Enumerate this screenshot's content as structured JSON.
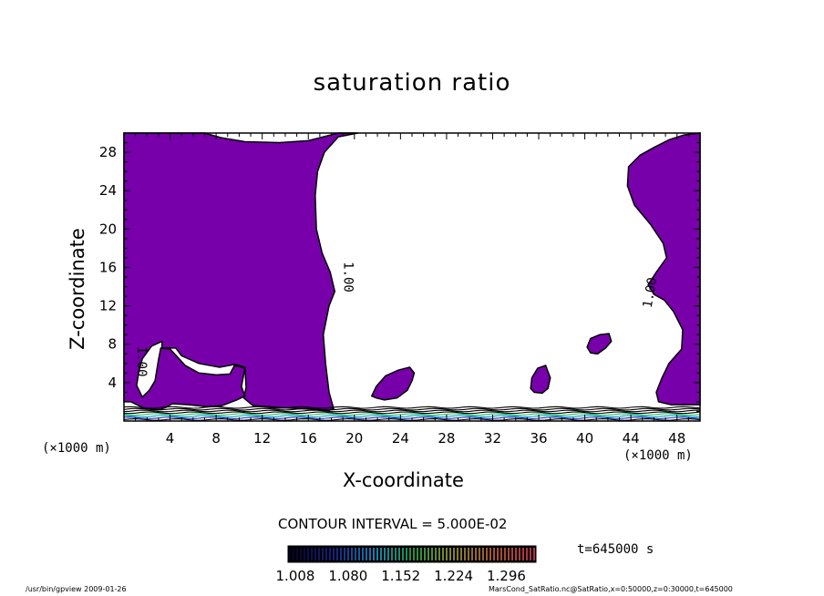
{
  "chart_data": {
    "type": "contour",
    "title": "saturation ratio",
    "xlabel": "X-coordinate",
    "ylabel": "Z-coordinate",
    "x_unit_note": "(×1000 m)",
    "xlim": [
      0,
      50
    ],
    "ylim": [
      0,
      30
    ],
    "x_ticks": [
      4,
      8,
      12,
      16,
      20,
      24,
      28,
      32,
      36,
      40,
      44,
      48
    ],
    "y_ticks": [
      4,
      8,
      12,
      16,
      20,
      24,
      28
    ],
    "contour_labels": [
      "1.00",
      "1.00",
      "1.00"
    ],
    "contour_interval_text": "CONTOUR INTERVAL = 5.000E-02",
    "colorbar_ticks": [
      "1.008",
      "1.080",
      "1.152",
      "1.224",
      "1.296"
    ],
    "time_text": "t=645000 s",
    "region_color": "#7700aa",
    "regions": [
      {
        "name": "left-block",
        "outline": [
          [
            0,
            30
          ],
          [
            0,
            2
          ],
          [
            0.6,
            2
          ],
          [
            1.8,
            1.3
          ],
          [
            3.1,
            1.2
          ],
          [
            3.6,
            1.4
          ],
          [
            4.2,
            1.8
          ],
          [
            5.6,
            1.7
          ],
          [
            7.2,
            1.5
          ],
          [
            8.5,
            1.6
          ],
          [
            9.8,
            2.2
          ],
          [
            10.5,
            2.6
          ],
          [
            10.2,
            3.6
          ],
          [
            10.5,
            5.5
          ],
          [
            9.6,
            5.8
          ],
          [
            9.2,
            4.9
          ],
          [
            8.0,
            4.8
          ],
          [
            6.5,
            5.0
          ],
          [
            5.3,
            5.8
          ],
          [
            4.7,
            6.6
          ],
          [
            4.0,
            7.5
          ],
          [
            3.2,
            7.6
          ],
          [
            3.0,
            6.4
          ],
          [
            2.7,
            4.2
          ],
          [
            2.2,
            3.2
          ],
          [
            1.6,
            2.5
          ],
          [
            1.1,
            3.7
          ],
          [
            1.3,
            5.2
          ],
          [
            1.6,
            6.5
          ],
          [
            2.4,
            7.8
          ],
          [
            3.3,
            8.3
          ],
          [
            3.3,
            7.6
          ],
          [
            4.5,
            7.6
          ],
          [
            5.0,
            6.8
          ],
          [
            6.5,
            6.0
          ],
          [
            8.3,
            5.6
          ],
          [
            9.6,
            5.9
          ],
          [
            10.5,
            5.6
          ],
          [
            10.6,
            3.5
          ],
          [
            10.4,
            2.4
          ],
          [
            11.2,
            1.6
          ],
          [
            13.5,
            1.4
          ],
          [
            15.0,
            1.3
          ],
          [
            16.8,
            1.2
          ],
          [
            17.8,
            1.1
          ],
          [
            18.2,
            1.3
          ],
          [
            17.8,
            3.0
          ],
          [
            17.5,
            6.0
          ],
          [
            17.3,
            9.0
          ],
          [
            17.8,
            12.0
          ],
          [
            18.3,
            13.5
          ],
          [
            17.9,
            15.5
          ],
          [
            17.2,
            17.5
          ],
          [
            16.7,
            20.0
          ],
          [
            16.6,
            23.5
          ],
          [
            16.8,
            26.0
          ],
          [
            17.4,
            28.0
          ],
          [
            18.6,
            29.6
          ],
          [
            20.3,
            30
          ],
          [
            18.6,
            30
          ],
          [
            16.0,
            29.2
          ],
          [
            13.5,
            29.0
          ],
          [
            10.5,
            29.1
          ],
          [
            8.5,
            29.5
          ],
          [
            7.0,
            30
          ]
        ]
      },
      {
        "name": "right-block",
        "outline": [
          [
            50,
            30
          ],
          [
            48.6,
            29.8
          ],
          [
            47.3,
            29.3
          ],
          [
            46.0,
            28.5
          ],
          [
            44.8,
            27.7
          ],
          [
            43.8,
            26.5
          ],
          [
            43.7,
            24.5
          ],
          [
            44.3,
            22.5
          ],
          [
            45.7,
            20.5
          ],
          [
            46.8,
            18.5
          ],
          [
            47.1,
            17.0
          ],
          [
            46.2,
            15.5
          ],
          [
            45.5,
            14.2
          ],
          [
            46.0,
            13.2
          ],
          [
            46.9,
            12.6
          ],
          [
            47.7,
            11.4
          ],
          [
            48.5,
            9.5
          ],
          [
            48.4,
            7.5
          ],
          [
            47.3,
            6.0
          ],
          [
            46.7,
            4.5
          ],
          [
            46.2,
            3.0
          ],
          [
            46.4,
            2.0
          ],
          [
            47.5,
            1.7
          ],
          [
            50,
            1.7
          ]
        ]
      },
      {
        "name": "blob-24",
        "outline": [
          [
            21.5,
            2.6
          ],
          [
            21.9,
            3.6
          ],
          [
            22.7,
            4.7
          ],
          [
            23.8,
            5.3
          ],
          [
            24.8,
            5.6
          ],
          [
            25.2,
            5.0
          ],
          [
            25.0,
            4.2
          ],
          [
            24.6,
            3.2
          ],
          [
            23.7,
            2.4
          ],
          [
            22.6,
            2.2
          ],
          [
            21.9,
            2.4
          ]
        ]
      },
      {
        "name": "blob-36",
        "outline": [
          [
            35.3,
            3.4
          ],
          [
            35.4,
            4.5
          ],
          [
            35.9,
            5.5
          ],
          [
            36.6,
            5.8
          ],
          [
            37.0,
            4.5
          ],
          [
            36.8,
            3.4
          ],
          [
            36.3,
            2.9
          ],
          [
            35.6,
            3.0
          ]
        ]
      },
      {
        "name": "blob-41",
        "outline": [
          [
            40.2,
            7.7
          ],
          [
            40.5,
            8.6
          ],
          [
            41.3,
            9.0
          ],
          [
            42.1,
            9.1
          ],
          [
            42.3,
            8.3
          ],
          [
            41.8,
            7.6
          ],
          [
            41.1,
            7.0
          ],
          [
            40.5,
            7.1
          ]
        ]
      }
    ]
  },
  "footer": {
    "left": "/usr/bin/gpview   2009-01-26",
    "right": "MarsCond_SatRatio.nc@SatRatio,x=0:50000,z=0:30000,t=645000"
  }
}
